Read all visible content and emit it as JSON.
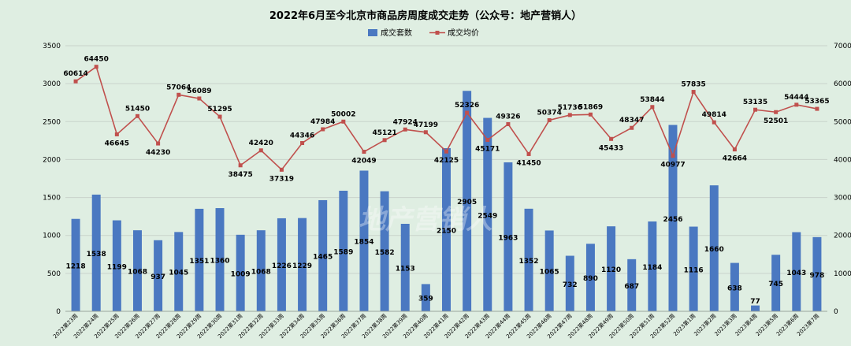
{
  "chart_data": {
    "type": "bar+line",
    "title": "2022年6月至今北京市商品房周度成交走势（公众号：地产营销人）",
    "watermark": "地产营销人",
    "categories": [
      "2022第23周",
      "2022第24周",
      "2022第25周",
      "2022第26周",
      "2022第27周",
      "2022第28周",
      "2022第29周",
      "2022第30周",
      "2022第31周",
      "2022第32周",
      "2022第33周",
      "2022第34周",
      "2022第35周",
      "2022第36周",
      "2022第37周",
      "2022第38周",
      "2022第39周",
      "2022第40周",
      "2022第41周",
      "2022第42周",
      "2022第43周",
      "2022第44周",
      "2022第45周",
      "2022第46周",
      "2022第47周",
      "2022第48周",
      "2022第49周",
      "2022第50周",
      "2022第51周",
      "2022第52周",
      "2023第1周",
      "2023第2周",
      "2023第3周",
      "2023第4周",
      "2023第5周",
      "2023第6周",
      "2023第7周"
    ],
    "series": [
      {
        "name": "成交套数",
        "type": "bar",
        "axis": "left",
        "color": "#4a78c1",
        "values": [
          1218,
          1538,
          1199,
          1068,
          937,
          1045,
          1351,
          1360,
          1009,
          1068,
          1226,
          1229,
          1465,
          1589,
          1854,
          1582,
          1153,
          359,
          2150,
          2905,
          2549,
          1963,
          1352,
          1065,
          732,
          890,
          1120,
          687,
          1184,
          2456,
          1116,
          1660,
          638,
          77,
          745,
          1043,
          978
        ]
      },
      {
        "name": "成交均价",
        "type": "line",
        "axis": "right",
        "color": "#c0504d",
        "values": [
          60614,
          64450,
          46645,
          51450,
          44230,
          57064,
          56089,
          51295,
          38475,
          42420,
          37319,
          44346,
          47984,
          50002,
          42049,
          45121,
          47924,
          47199,
          42125,
          52326,
          45171,
          49326,
          41450,
          50374,
          51736,
          51869,
          45433,
          48347,
          53844,
          40977,
          57835,
          49814,
          42664,
          53135,
          52501,
          54444,
          53365
        ]
      }
    ],
    "y_left": {
      "min": 0,
      "max": 3500,
      "step": 500,
      "ticks": [
        "0",
        "500",
        "1000",
        "1500",
        "2000",
        "2500",
        "3000",
        "3500"
      ]
    },
    "y_right": {
      "min": 0,
      "max": 70000,
      "step": 10000,
      "ticks": [
        "0",
        "10000",
        "20000",
        "30000",
        "40000",
        "50000",
        "60000",
        "70000"
      ]
    },
    "legend_position": "top-center",
    "grid": true
  }
}
